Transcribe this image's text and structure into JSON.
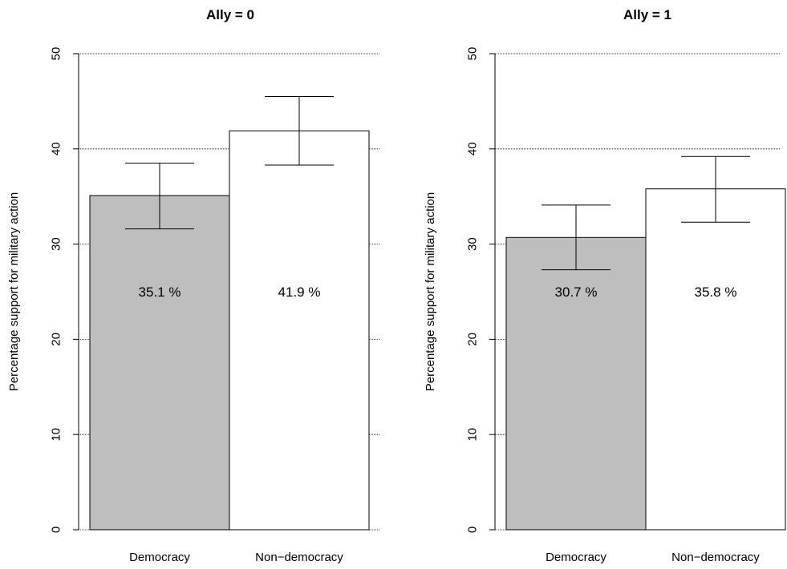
{
  "chart_data": [
    {
      "type": "bar",
      "title": "Ally = 0",
      "ylabel": "Percentage support for military action",
      "xlabel": "",
      "ylim": [
        0,
        50
      ],
      "yticks": [
        0,
        10,
        20,
        30,
        40,
        50
      ],
      "grid": true,
      "categories": [
        "Democracy",
        "Non−democracy"
      ],
      "values": [
        35.1,
        41.9
      ],
      "error_low": [
        31.6,
        38.3
      ],
      "error_high": [
        38.5,
        45.5
      ],
      "bar_labels": [
        "35.1 %",
        "41.9 %"
      ],
      "bar_colors": [
        "#bebebe",
        "#ffffff"
      ]
    },
    {
      "type": "bar",
      "title": "Ally = 1",
      "ylabel": "Percentage support for military action",
      "xlabel": "",
      "ylim": [
        0,
        50
      ],
      "yticks": [
        0,
        10,
        20,
        30,
        40,
        50
      ],
      "grid": true,
      "categories": [
        "Democracy",
        "Non−democracy"
      ],
      "values": [
        30.7,
        35.8
      ],
      "error_low": [
        27.3,
        32.3
      ],
      "error_high": [
        34.1,
        39.2
      ],
      "bar_labels": [
        "30.7 %",
        "35.8 %"
      ],
      "bar_colors": [
        "#bebebe",
        "#ffffff"
      ]
    }
  ]
}
